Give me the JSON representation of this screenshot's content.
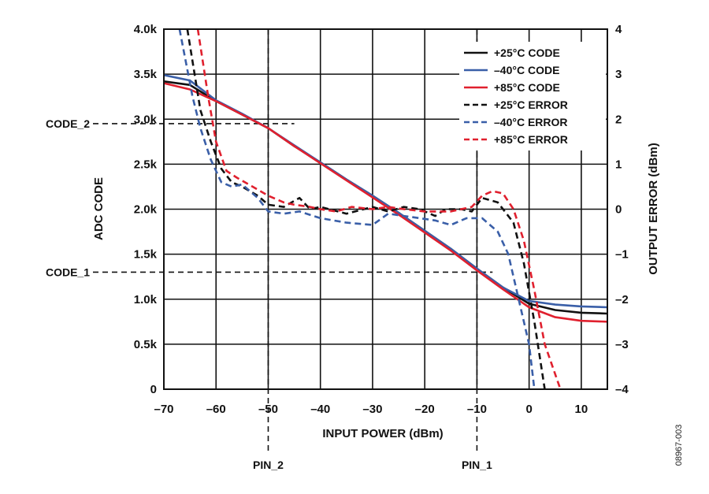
{
  "figure_id": "08967-003",
  "chart_data": {
    "type": "line",
    "xlabel": "INPUT POWER (dBm)",
    "ylabel": "ADC CODE",
    "y2label": "OUTPUT ERROR (dBm)",
    "xlim": [
      -70,
      15
    ],
    "ylim": [
      0,
      4000
    ],
    "y2lim": [
      -4,
      4
    ],
    "grid": true,
    "legend_position": "top-right",
    "x_ticks": [
      -70,
      -60,
      -50,
      -40,
      -30,
      -20,
      -10,
      0,
      10
    ],
    "x_tick_labels": [
      "–70",
      "–60",
      "–50",
      "–40",
      "–30",
      "–20",
      "–10",
      "0",
      "10"
    ],
    "y_ticks": [
      0,
      500,
      1000,
      1500,
      2000,
      2500,
      3000,
      3500,
      4000
    ],
    "y_tick_labels": [
      "0",
      "0.5k",
      "1.0k",
      "1.5k",
      "2.0k",
      "2.5k",
      "3.0k",
      "3.5k",
      "4.0k"
    ],
    "y2_ticks": [
      -4,
      -3,
      -2,
      -1,
      0,
      1,
      2,
      3,
      4
    ],
    "y2_tick_labels": [
      "–4",
      "–3",
      "–2",
      "–1",
      "0",
      "1",
      "2",
      "3",
      "4"
    ],
    "series": [
      {
        "name": "+25°C CODE",
        "axis": "left",
        "color": "#111111",
        "dash": false,
        "points": [
          [
            -70,
            3420
          ],
          [
            -65,
            3380
          ],
          [
            -60,
            3200
          ],
          [
            -55,
            3050
          ],
          [
            -50,
            2900
          ],
          [
            -45,
            2700
          ],
          [
            -40,
            2520
          ],
          [
            -35,
            2330
          ],
          [
            -30,
            2150
          ],
          [
            -25,
            1960
          ],
          [
            -20,
            1760
          ],
          [
            -15,
            1560
          ],
          [
            -10,
            1340
          ],
          [
            -5,
            1130
          ],
          [
            0,
            950
          ],
          [
            5,
            880
          ],
          [
            10,
            850
          ],
          [
            15,
            840
          ]
        ]
      },
      {
        "name": "–40°C CODE",
        "axis": "left",
        "color": "#3a5fa8",
        "dash": false,
        "points": [
          [
            -70,
            3490
          ],
          [
            -65,
            3430
          ],
          [
            -60,
            3210
          ],
          [
            -55,
            3060
          ],
          [
            -50,
            2900
          ],
          [
            -45,
            2710
          ],
          [
            -40,
            2520
          ],
          [
            -35,
            2330
          ],
          [
            -30,
            2150
          ],
          [
            -25,
            1960
          ],
          [
            -20,
            1760
          ],
          [
            -15,
            1560
          ],
          [
            -10,
            1340
          ],
          [
            -5,
            1130
          ],
          [
            0,
            980
          ],
          [
            5,
            940
          ],
          [
            10,
            920
          ],
          [
            15,
            910
          ]
        ]
      },
      {
        "name": "+85°C CODE",
        "axis": "left",
        "color": "#e0202e",
        "dash": false,
        "points": [
          [
            -70,
            3400
          ],
          [
            -65,
            3330
          ],
          [
            -60,
            3200
          ],
          [
            -55,
            3050
          ],
          [
            -50,
            2900
          ],
          [
            -45,
            2700
          ],
          [
            -40,
            2510
          ],
          [
            -35,
            2320
          ],
          [
            -30,
            2130
          ],
          [
            -25,
            1940
          ],
          [
            -20,
            1740
          ],
          [
            -15,
            1540
          ],
          [
            -10,
            1320
          ],
          [
            -5,
            1110
          ],
          [
            0,
            910
          ],
          [
            5,
            800
          ],
          [
            10,
            760
          ],
          [
            15,
            750
          ]
        ]
      },
      {
        "name": "+25°C ERROR",
        "axis": "right",
        "color": "#111111",
        "dash": true,
        "points": [
          [
            -65.5,
            4
          ],
          [
            -63,
            2.2
          ],
          [
            -61,
            1.5
          ],
          [
            -59,
            0.9
          ],
          [
            -57,
            0.6
          ],
          [
            -55,
            0.5
          ],
          [
            -52,
            0.3
          ],
          [
            -50,
            0.1
          ],
          [
            -47,
            0.05
          ],
          [
            -44,
            0.25
          ],
          [
            -42,
            0.0
          ],
          [
            -40,
            0.05
          ],
          [
            -35,
            -0.1
          ],
          [
            -30,
            0.05
          ],
          [
            -27,
            -0.05
          ],
          [
            -24,
            0.05
          ],
          [
            -21,
            0.0
          ],
          [
            -18,
            -0.15
          ],
          [
            -16,
            0.0
          ],
          [
            -13,
            0.0
          ],
          [
            -11,
            -0.05
          ],
          [
            -9,
            0.25
          ],
          [
            -6,
            0.15
          ],
          [
            -3,
            -0.3
          ],
          [
            -1,
            -1.2
          ],
          [
            1,
            -2.5
          ],
          [
            3,
            -4
          ]
        ]
      },
      {
        "name": "–40°C ERROR",
        "axis": "right",
        "color": "#3a5fa8",
        "dash": true,
        "points": [
          [
            -67,
            4
          ],
          [
            -64.5,
            2.5
          ],
          [
            -63,
            1.8
          ],
          [
            -61,
            1.1
          ],
          [
            -59,
            0.6
          ],
          [
            -57,
            0.5
          ],
          [
            -55,
            0.55
          ],
          [
            -52,
            0.25
          ],
          [
            -50,
            -0.05
          ],
          [
            -47,
            -0.1
          ],
          [
            -44,
            -0.05
          ],
          [
            -40,
            -0.2
          ],
          [
            -35,
            -0.3
          ],
          [
            -30,
            -0.35
          ],
          [
            -27,
            -0.1
          ],
          [
            -24,
            -0.15
          ],
          [
            -21,
            -0.2
          ],
          [
            -18,
            -0.25
          ],
          [
            -15,
            -0.35
          ],
          [
            -12,
            -0.2
          ],
          [
            -9,
            -0.2
          ],
          [
            -6,
            -0.5
          ],
          [
            -4,
            -1.0
          ],
          [
            -2,
            -2.0
          ],
          [
            0,
            -3.0
          ],
          [
            1,
            -4
          ]
        ]
      },
      {
        "name": "+85°C ERROR",
        "axis": "right",
        "color": "#e0202e",
        "dash": true,
        "points": [
          [
            -63.5,
            4
          ],
          [
            -61.5,
            2.5
          ],
          [
            -60,
            1.5
          ],
          [
            -58,
            0.85
          ],
          [
            -56,
            0.7
          ],
          [
            -53,
            0.5
          ],
          [
            -50,
            0.3
          ],
          [
            -47,
            0.15
          ],
          [
            -45,
            0.1
          ],
          [
            -42,
            0.05
          ],
          [
            -40,
            0.0
          ],
          [
            -37,
            -0.05
          ],
          [
            -34,
            0.05
          ],
          [
            -30,
            0.0
          ],
          [
            -27,
            0.05
          ],
          [
            -24,
            0.0
          ],
          [
            -20,
            -0.05
          ],
          [
            -15,
            -0.05
          ],
          [
            -11,
            0.05
          ],
          [
            -9,
            0.3
          ],
          [
            -7,
            0.4
          ],
          [
            -5,
            0.35
          ],
          [
            -3,
            0.0
          ],
          [
            -1,
            -0.7
          ],
          [
            1,
            -1.8
          ],
          [
            3,
            -3.0
          ],
          [
            6,
            -4
          ]
        ]
      }
    ],
    "annotations": [
      {
        "label": "CODE_2",
        "axis": "left",
        "y": 2950,
        "x_end": -45
      },
      {
        "label": "CODE_1",
        "axis": "left",
        "y": 1300,
        "x_end": -7
      },
      {
        "label": "PIN_2",
        "x": -50
      },
      {
        "label": "PIN_1",
        "x": -10
      }
    ]
  }
}
